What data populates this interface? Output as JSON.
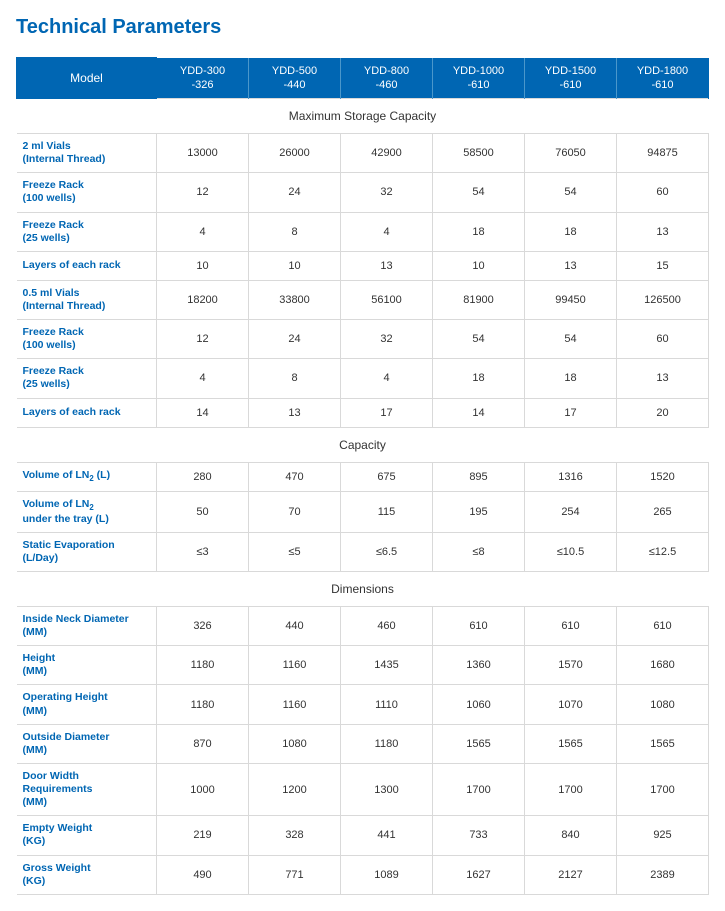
{
  "title": "Technical Parameters",
  "header": {
    "label": "Model",
    "columns": [
      {
        "l1": "YDD-300",
        "l2": "-326"
      },
      {
        "l1": "YDD-500",
        "l2": "-440"
      },
      {
        "l1": "YDD-800",
        "l2": "-460"
      },
      {
        "l1": "YDD-1000",
        "l2": "-610"
      },
      {
        "l1": "YDD-1500",
        "l2": "-610"
      },
      {
        "l1": "YDD-1800",
        "l2": "-610"
      }
    ]
  },
  "sections": [
    {
      "title": "Maximum Storage Capacity",
      "rows": [
        {
          "label": "2 ml Vials\n(Internal Thread)",
          "values": [
            "13000",
            "26000",
            "42900",
            "58500",
            "76050",
            "94875"
          ]
        },
        {
          "label": "Freeze Rack\n(100 wells)",
          "values": [
            "12",
            "24",
            "32",
            "54",
            "54",
            "60"
          ]
        },
        {
          "label": "Freeze Rack\n(25 wells)",
          "values": [
            "4",
            "8",
            "4",
            "18",
            "18",
            "13"
          ]
        },
        {
          "label": "Layers of each rack",
          "values": [
            "10",
            "10",
            "13",
            "10",
            "13",
            "15"
          ]
        },
        {
          "label": "0.5 ml Vials\n(Internal Thread)",
          "values": [
            "18200",
            "33800",
            "56100",
            "81900",
            "99450",
            "126500"
          ]
        },
        {
          "label": "Freeze Rack\n(100 wells)",
          "values": [
            "12",
            "24",
            "32",
            "54",
            "54",
            "60"
          ]
        },
        {
          "label": "Freeze Rack\n(25 wells)",
          "values": [
            "4",
            "8",
            "4",
            "18",
            "18",
            "13"
          ]
        },
        {
          "label": "Layers of each rack",
          "values": [
            "14",
            "13",
            "17",
            "14",
            "17",
            "20"
          ]
        }
      ]
    },
    {
      "title": "Capacity",
      "rows": [
        {
          "label_html": "Volume of LN<sub>2</sub> (L)",
          "values": [
            "280",
            "470",
            "675",
            "895",
            "1316",
            "1520"
          ]
        },
        {
          "label_html": "Volume of LN<sub>2</sub><br>under the tray (L)",
          "values": [
            "50",
            "70",
            "115",
            "195",
            "254",
            "265"
          ]
        },
        {
          "label": "Static Evaporation\n(L/Day)",
          "values": [
            "≤3",
            "≤5",
            "≤6.5",
            "≤8",
            "≤10.5",
            "≤12.5"
          ]
        }
      ]
    },
    {
      "title": "Dimensions",
      "rows": [
        {
          "label": "Inside Neck Diameter\n(MM)",
          "values": [
            "326",
            "440",
            "460",
            "610",
            "610",
            "610"
          ]
        },
        {
          "label": "Height\n(MM)",
          "values": [
            "1180",
            "1160",
            "1435",
            "1360",
            "1570",
            "1680"
          ]
        },
        {
          "label": "Operating Height\n(MM)",
          "values": [
            "1180",
            "1160",
            "1110",
            "1060",
            "1070",
            "1080"
          ]
        },
        {
          "label": "Outside Diameter\n(MM)",
          "values": [
            "870",
            "1080",
            "1180",
            "1565",
            "1565",
            "1565"
          ]
        },
        {
          "label": "Door Width Requirements\n(MM)",
          "values": [
            "1000",
            "1200",
            "1300",
            "1700",
            "1700",
            "1700"
          ]
        },
        {
          "label": "Empty Weight\n(KG)",
          "values": [
            "219",
            "328",
            "441",
            "733",
            "840",
            "925"
          ]
        },
        {
          "label": "Gross Weight\n(KG)",
          "values": [
            "490",
            "771",
            "1089",
            "1627",
            "2127",
            "2389"
          ]
        }
      ]
    }
  ],
  "style": {
    "accent": "#0066b3",
    "border": "#d9d9d9",
    "text": "#333333",
    "bg": "#ffffff"
  }
}
